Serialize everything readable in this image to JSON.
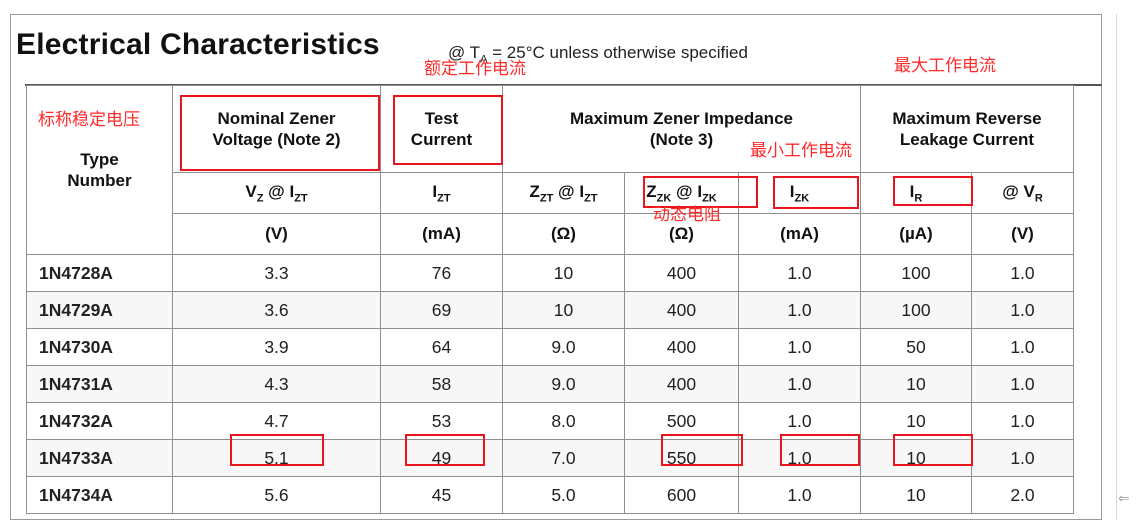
{
  "title": "Electrical Characteristics",
  "subtitle_prefix": "@ T",
  "subtitle_sub": "A",
  "subtitle_suffix": " = 25°C unless otherwise specified",
  "headers": {
    "type_number": "Type Number",
    "nominal_zener": "Nominal Zener Voltage (Note 2)",
    "test_current": "Test Current",
    "max_zener_impedance": "Maximum Zener Impedance (Note 3)",
    "max_reverse_leakage": "Maximum Reverse Leakage Current"
  },
  "symbols": {
    "vz_main": "V",
    "vz_sub": "Z",
    "vz_at": " @ I",
    "vz_at_sub": "ZT",
    "izt_main": "I",
    "izt_sub": "ZT",
    "zzt_main": "Z",
    "zzt_sub": "ZT",
    "zzt_at": " @ I",
    "zzt_at_sub": "ZT",
    "zzk_main": "Z",
    "zzk_sub": "ZK",
    "zzk_at": " @ I",
    "zzk_at_sub": "ZK",
    "izk_main": "I",
    "izk_sub": "ZK",
    "ir_main": "I",
    "ir_sub": "R",
    "vr_at": "@ V",
    "vr_sub": "R"
  },
  "units": [
    "(V)",
    "(mA)",
    "(Ω)",
    "(Ω)",
    "(mA)",
    "(µA)",
    "(V)"
  ],
  "rows": [
    [
      "1N4728A",
      "3.3",
      "76",
      "10",
      "400",
      "1.0",
      "100",
      "1.0"
    ],
    [
      "1N4729A",
      "3.6",
      "69",
      "10",
      "400",
      "1.0",
      "100",
      "1.0"
    ],
    [
      "1N4730A",
      "3.9",
      "64",
      "9.0",
      "400",
      "1.0",
      "50",
      "1.0"
    ],
    [
      "1N4731A",
      "4.3",
      "58",
      "9.0",
      "400",
      "1.0",
      "10",
      "1.0"
    ],
    [
      "1N4732A",
      "4.7",
      "53",
      "8.0",
      "500",
      "1.0",
      "10",
      "1.0"
    ],
    [
      "1N4733A",
      "5.1",
      "49",
      "7.0",
      "550",
      "1.0",
      "10",
      "1.0"
    ],
    [
      "1N4734A",
      "5.6",
      "45",
      "5.0",
      "600",
      "1.0",
      "10",
      "2.0"
    ]
  ],
  "annotations": {
    "nominal_voltage": "标称稳定电压",
    "rated_current": "额定工作电流",
    "max_current": "最大工作电流",
    "min_current": "最小工作电流",
    "dynamic_resistance": "动态电阻"
  },
  "annotation_color": "#ff2a2a",
  "highlight_color": "#e8141e"
}
